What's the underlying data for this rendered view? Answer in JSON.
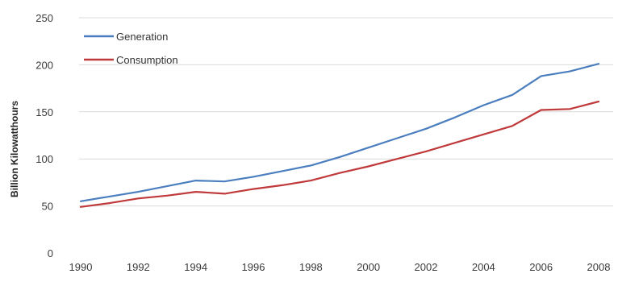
{
  "chart_data": {
    "type": "line",
    "title": "",
    "xlabel": "",
    "ylabel": "Billion Kilowatthours",
    "x": [
      1990,
      1991,
      1992,
      1993,
      1994,
      1995,
      1996,
      1997,
      1998,
      1999,
      2000,
      2001,
      2002,
      2003,
      2004,
      2005,
      2006,
      2007,
      2008
    ],
    "x_ticks": [
      "1990",
      "1992",
      "1994",
      "1996",
      "1998",
      "2000",
      "2002",
      "2004",
      "2006",
      "2008"
    ],
    "y_ticks": [
      "0",
      "50",
      "100",
      "150",
      "200",
      "250"
    ],
    "xlim": [
      1990,
      2008
    ],
    "ylim": [
      0,
      250
    ],
    "grid": true,
    "legend_position": "top-left",
    "series": [
      {
        "name": "Generation",
        "color": "#4a7ebf",
        "values": [
          55,
          60,
          65,
          71,
          77,
          76,
          81,
          87,
          93,
          102,
          112,
          122,
          132,
          144,
          157,
          168,
          188,
          193,
          201
        ]
      },
      {
        "name": "Consumption",
        "color": "#c0393b",
        "values": [
          49,
          53,
          58,
          61,
          65,
          63,
          68,
          72,
          77,
          85,
          92,
          100,
          108,
          117,
          126,
          135,
          152,
          153,
          161
        ]
      }
    ]
  }
}
